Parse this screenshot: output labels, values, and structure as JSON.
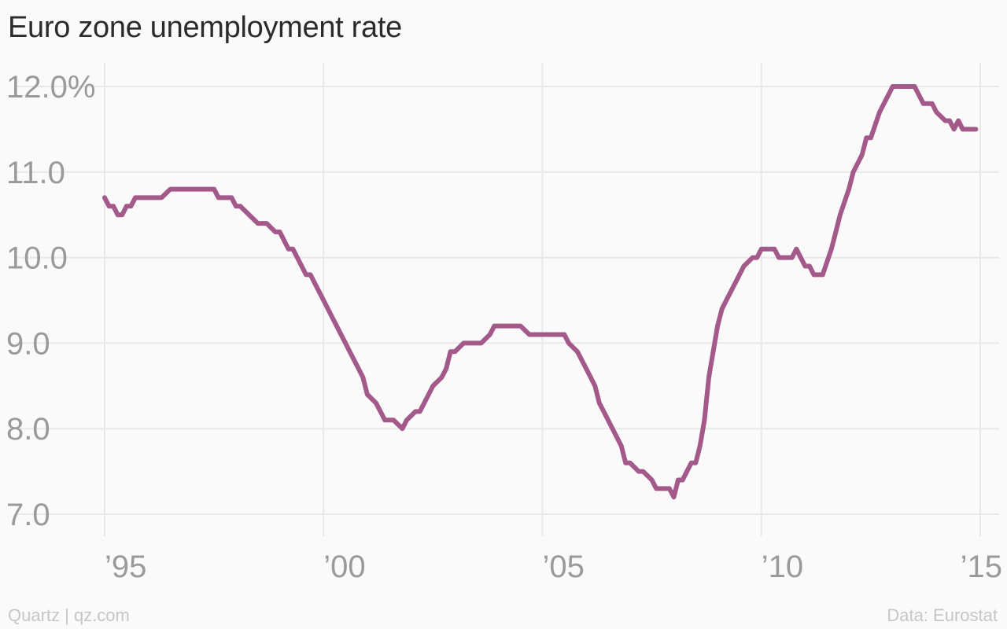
{
  "chart_data": {
    "type": "line",
    "title": "Euro zone unemployment rate",
    "xlabel": "",
    "ylabel": "",
    "ylim": [
      7.0,
      12.0
    ],
    "xlim": [
      1995,
      2015
    ],
    "y_ticks": [
      {
        "value": 12.0,
        "label": "12.0%"
      },
      {
        "value": 11.0,
        "label": "11.0"
      },
      {
        "value": 10.0,
        "label": "10.0"
      },
      {
        "value": 9.0,
        "label": "9.0"
      },
      {
        "value": 8.0,
        "label": "8.0"
      },
      {
        "value": 7.0,
        "label": "7.0"
      }
    ],
    "x_ticks": [
      {
        "value": 1995,
        "label": "’95"
      },
      {
        "value": 2000,
        "label": "’00"
      },
      {
        "value": 2005,
        "label": "’05"
      },
      {
        "value": 2010,
        "label": "’10"
      },
      {
        "value": 2015,
        "label": "’15"
      }
    ],
    "grid": true,
    "line_color": "#a35a8a",
    "series": [
      {
        "x": [
          1995.0,
          1995.1,
          1995.2,
          1995.3,
          1995.4,
          1995.5,
          1995.6,
          1995.7,
          1995.9,
          1996.0,
          1996.3,
          1996.5,
          1996.6,
          1997.0,
          1997.5,
          1997.6,
          1997.9,
          1998.0,
          1998.1,
          1998.3,
          1998.5,
          1998.7,
          1998.9,
          1999.0,
          1999.2,
          1999.3,
          1999.4,
          1999.6,
          1999.7,
          1999.8,
          2000.0,
          2000.2,
          2000.4,
          2000.5,
          2000.6,
          2000.8,
          2000.9,
          2001.0,
          2001.2,
          2001.4,
          2001.5,
          2001.6,
          2001.8,
          2001.9,
          2002.1,
          2002.2,
          2002.4,
          2002.5,
          2002.7,
          2002.8,
          2002.9,
          2003.0,
          2003.2,
          2003.3,
          2003.5,
          2003.6,
          2003.8,
          2003.9,
          2004.0,
          2004.2,
          2004.5,
          2004.7,
          2004.9,
          2005.0,
          2005.5,
          2005.6,
          2005.8,
          2005.9,
          2006.0,
          2006.2,
          2006.3,
          2006.4,
          2006.6,
          2006.8,
          2006.9,
          2007.0,
          2007.2,
          2007.3,
          2007.5,
          2007.6,
          2007.9,
          2008.0,
          2008.1,
          2008.2,
          2008.3,
          2008.4,
          2008.5,
          2008.6,
          2008.7,
          2008.8,
          2009.0,
          2009.1,
          2009.2,
          2009.4,
          2009.6,
          2009.8,
          2009.9,
          2010.0,
          2010.3,
          2010.4,
          2010.5,
          2010.7,
          2010.8,
          2010.9,
          2011.0,
          2011.1,
          2011.2,
          2011.4,
          2011.6,
          2011.7,
          2011.8,
          2012.0,
          2012.1,
          2012.3,
          2012.4,
          2012.5,
          2012.7,
          2012.8,
          2013.0,
          2013.5,
          2013.6,
          2013.7,
          2013.9,
          2014.0,
          2014.2,
          2014.3,
          2014.4,
          2014.5,
          2014.6,
          2014.7,
          2014.9
        ],
        "y": [
          10.7,
          10.6,
          10.6,
          10.5,
          10.5,
          10.6,
          10.6,
          10.7,
          10.7,
          10.7,
          10.7,
          10.8,
          10.8,
          10.8,
          10.8,
          10.7,
          10.7,
          10.6,
          10.6,
          10.5,
          10.4,
          10.4,
          10.3,
          10.3,
          10.1,
          10.1,
          10.0,
          9.8,
          9.8,
          9.7,
          9.5,
          9.3,
          9.1,
          9.0,
          8.9,
          8.7,
          8.6,
          8.4,
          8.3,
          8.1,
          8.1,
          8.1,
          8.0,
          8.1,
          8.2,
          8.2,
          8.4,
          8.5,
          8.6,
          8.7,
          8.9,
          8.9,
          9.0,
          9.0,
          9.0,
          9.0,
          9.1,
          9.2,
          9.2,
          9.2,
          9.2,
          9.1,
          9.1,
          9.1,
          9.1,
          9.0,
          8.9,
          8.8,
          8.7,
          8.5,
          8.3,
          8.2,
          8.0,
          7.8,
          7.6,
          7.6,
          7.5,
          7.5,
          7.4,
          7.3,
          7.3,
          7.2,
          7.4,
          7.4,
          7.5,
          7.6,
          7.6,
          7.8,
          8.1,
          8.6,
          9.2,
          9.4,
          9.5,
          9.7,
          9.9,
          10.0,
          10.0,
          10.1,
          10.1,
          10.0,
          10.0,
          10.0,
          10.1,
          10.0,
          9.9,
          9.9,
          9.8,
          9.8,
          10.1,
          10.3,
          10.5,
          10.8,
          11.0,
          11.2,
          11.4,
          11.4,
          11.7,
          11.8,
          12.0,
          12.0,
          11.9,
          11.8,
          11.8,
          11.7,
          11.6,
          11.6,
          11.5,
          11.6,
          11.5,
          11.5,
          11.5
        ]
      }
    ]
  },
  "footer": {
    "source_left": "Quartz | qz.com",
    "source_right": "Data: Eurostat"
  }
}
